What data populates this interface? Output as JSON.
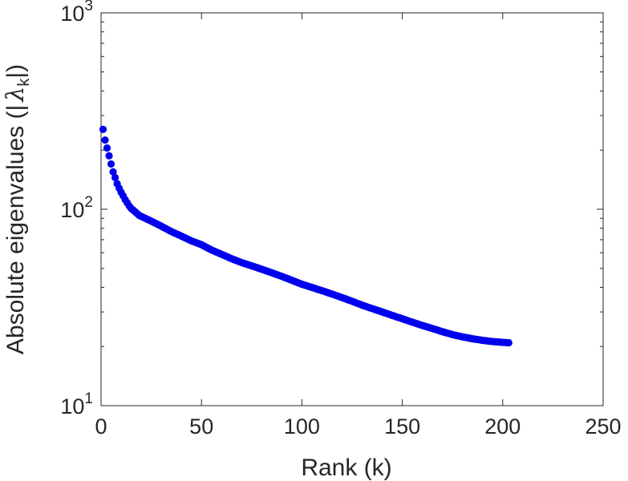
{
  "chart_data": {
    "type": "scatter",
    "xlabel": "Rank (k)",
    "ylabel": {
      "prefix": "Absolute eigenvalues (|",
      "symbol": "λ",
      "subscript": "k",
      "suffix": "|)"
    },
    "xlim": [
      0,
      250
    ],
    "ylim": [
      10,
      1000
    ],
    "yscale": "log",
    "xticks": [
      0,
      50,
      100,
      150,
      200,
      250
    ],
    "xtick_labels": [
      "0",
      "50",
      "100",
      "150",
      "200",
      "250"
    ],
    "yticks": [
      10,
      100,
      1000
    ],
    "ytick_labels": [
      {
        "base": "10",
        "exp": "1"
      },
      {
        "base": "10",
        "exp": "2"
      },
      {
        "base": "10",
        "exp": "3"
      }
    ],
    "grid": false,
    "box": true,
    "marker_color": "#0000ee",
    "series": [
      {
        "x": [
          1,
          2,
          3,
          4,
          5,
          6,
          7,
          8,
          9,
          10,
          11,
          12,
          13,
          14,
          15,
          16,
          17,
          18,
          19,
          20,
          25,
          30,
          35,
          40,
          45,
          50,
          55,
          60,
          65,
          70,
          75,
          80,
          85,
          90,
          95,
          100,
          105,
          110,
          115,
          120,
          125,
          130,
          135,
          140,
          145,
          150,
          155,
          160,
          165,
          170,
          175,
          180,
          185,
          190,
          195,
          200,
          203
        ],
        "y": [
          255,
          225,
          205,
          187,
          170,
          155,
          145,
          135,
          128,
          122,
          117,
          112,
          108,
          104,
          101,
          99,
          97,
          95,
          93,
          92,
          87,
          82,
          77,
          73,
          69,
          66,
          62,
          59,
          56,
          53.5,
          51.5,
          49.5,
          47.5,
          45.5,
          43.5,
          41.5,
          40,
          38.5,
          37,
          35.5,
          34,
          32.5,
          31.2,
          30.0,
          28.8,
          27.7,
          26.6,
          25.6,
          24.7,
          23.8,
          23.0,
          22.4,
          21.9,
          21.5,
          21.2,
          21.0,
          20.9
        ]
      }
    ]
  }
}
